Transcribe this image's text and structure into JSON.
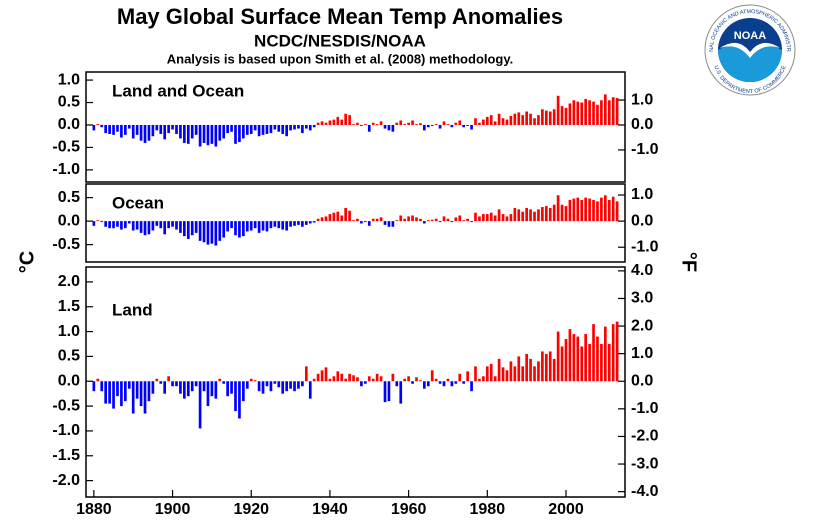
{
  "title": "May Global Surface Mean Temp Anomalies",
  "subtitle": "NCDC/NESDIS/NOAA",
  "note": "Analysis is based upon Smith et al. (2008) methodology.",
  "y_label": "°C",
  "y2_label": "°F",
  "logo": {
    "text": "NOAA",
    "ring_top": "NATIONAL OCEANIC AND ATMOSPHERIC ADMINISTRATION",
    "ring_bottom": "U.S. DEPARTMENT OF COMMERCE"
  },
  "chart_data": [
    {
      "type": "bar",
      "label": "Land and Ocean",
      "colors": {
        "positive": "#ff0000",
        "negative": "#0000ff"
      },
      "x": [
        1880,
        1881,
        1882,
        1883,
        1884,
        1885,
        1886,
        1887,
        1888,
        1889,
        1890,
        1891,
        1892,
        1893,
        1894,
        1895,
        1896,
        1897,
        1898,
        1899,
        1900,
        1901,
        1902,
        1903,
        1904,
        1905,
        1906,
        1907,
        1908,
        1909,
        1910,
        1911,
        1912,
        1913,
        1914,
        1915,
        1916,
        1917,
        1918,
        1919,
        1920,
        1921,
        1922,
        1923,
        1924,
        1925,
        1926,
        1927,
        1928,
        1929,
        1930,
        1931,
        1932,
        1933,
        1934,
        1935,
        1936,
        1937,
        1938,
        1939,
        1940,
        1941,
        1942,
        1943,
        1944,
        1945,
        1946,
        1947,
        1948,
        1949,
        1950,
        1951,
        1952,
        1953,
        1954,
        1955,
        1956,
        1957,
        1958,
        1959,
        1960,
        1961,
        1962,
        1963,
        1964,
        1965,
        1966,
        1967,
        1968,
        1969,
        1970,
        1971,
        1972,
        1973,
        1974,
        1975,
        1976,
        1977,
        1978,
        1979,
        1980,
        1981,
        1982,
        1983,
        1984,
        1985,
        1986,
        1987,
        1988,
        1989,
        1990,
        1991,
        1992,
        1993,
        1994,
        1995,
        1996,
        1997,
        1998,
        1999,
        2000,
        2001,
        2002,
        2003,
        2004,
        2005,
        2006,
        2007,
        2008,
        2009,
        2010,
        2011,
        2012,
        2013
      ],
      "values": [
        -0.12,
        0.02,
        -0.05,
        -0.18,
        -0.2,
        -0.22,
        -0.15,
        -0.28,
        -0.22,
        -0.08,
        -0.3,
        -0.22,
        -0.35,
        -0.4,
        -0.35,
        -0.25,
        -0.12,
        -0.2,
        -0.32,
        -0.18,
        -0.1,
        -0.2,
        -0.3,
        -0.4,
        -0.42,
        -0.3,
        -0.22,
        -0.48,
        -0.4,
        -0.45,
        -0.42,
        -0.48,
        -0.35,
        -0.3,
        -0.18,
        -0.15,
        -0.42,
        -0.38,
        -0.3,
        -0.22,
        -0.2,
        -0.12,
        -0.25,
        -0.22,
        -0.2,
        -0.18,
        -0.1,
        -0.15,
        -0.2,
        -0.25,
        -0.12,
        -0.1,
        -0.08,
        -0.18,
        -0.08,
        -0.12,
        -0.05,
        0.05,
        0.08,
        0.05,
        0.1,
        0.12,
        0.18,
        0.12,
        0.25,
        0.22,
        0.02,
        0.05,
        -0.02,
        0.02,
        -0.15,
        0.05,
        0.02,
        0.08,
        -0.08,
        -0.12,
        -0.15,
        0.05,
        0.1,
        0.02,
        0.05,
        0.1,
        0.02,
        0.04,
        -0.12,
        -0.05,
        -0.02,
        0.02,
        -0.08,
        0.08,
        0.02,
        -0.05,
        0.05,
        0.1,
        -0.05,
        -0.02,
        -0.1,
        0.15,
        0.05,
        0.12,
        0.18,
        0.22,
        0.08,
        0.25,
        0.15,
        0.12,
        0.2,
        0.25,
        0.28,
        0.22,
        0.3,
        0.25,
        0.15,
        0.22,
        0.35,
        0.32,
        0.3,
        0.35,
        0.65,
        0.42,
        0.38,
        0.48,
        0.55,
        0.52,
        0.5,
        0.58,
        0.55,
        0.52,
        0.45,
        0.55,
        0.68,
        0.55,
        0.62,
        0.6
      ],
      "xlim": [
        1878,
        2015
      ],
      "ylim": [
        -1.27,
        1.18
      ],
      "y2lim": [
        -2.286,
        2.124
      ],
      "yticks": [
        {
          "value": 1,
          "label": "1.0"
        },
        {
          "value": 0.5,
          "label": "0.5"
        },
        {
          "value": 0,
          "label": "0.0"
        },
        {
          "value": -0.5,
          "label": "-0.5"
        },
        {
          "value": -1,
          "label": "-1.0"
        }
      ],
      "y2ticks": [
        {
          "value": 1,
          "label": "1.0"
        },
        {
          "value": 0,
          "label": "0.0"
        },
        {
          "value": -1,
          "label": "-1.0"
        }
      ]
    },
    {
      "type": "bar",
      "label": "Ocean",
      "colors": {
        "positive": "#ff0000",
        "negative": "#0000ff"
      },
      "x": [
        1880,
        1881,
        1882,
        1883,
        1884,
        1885,
        1886,
        1887,
        1888,
        1889,
        1890,
        1891,
        1892,
        1893,
        1894,
        1895,
        1896,
        1897,
        1898,
        1899,
        1900,
        1901,
        1902,
        1903,
        1904,
        1905,
        1906,
        1907,
        1908,
        1909,
        1910,
        1911,
        1912,
        1913,
        1914,
        1915,
        1916,
        1917,
        1918,
        1919,
        1920,
        1921,
        1922,
        1923,
        1924,
        1925,
        1926,
        1927,
        1928,
        1929,
        1930,
        1931,
        1932,
        1933,
        1934,
        1935,
        1936,
        1937,
        1938,
        1939,
        1940,
        1941,
        1942,
        1943,
        1944,
        1945,
        1946,
        1947,
        1948,
        1949,
        1950,
        1951,
        1952,
        1953,
        1954,
        1955,
        1956,
        1957,
        1958,
        1959,
        1960,
        1961,
        1962,
        1963,
        1964,
        1965,
        1966,
        1967,
        1968,
        1969,
        1970,
        1971,
        1972,
        1973,
        1974,
        1975,
        1976,
        1977,
        1978,
        1979,
        1980,
        1981,
        1982,
        1983,
        1984,
        1985,
        1986,
        1987,
        1988,
        1989,
        1990,
        1991,
        1992,
        1993,
        1994,
        1995,
        1996,
        1997,
        1998,
        1999,
        2000,
        2001,
        2002,
        2003,
        2004,
        2005,
        2006,
        2007,
        2008,
        2009,
        2010,
        2011,
        2012,
        2013
      ],
      "values": [
        -0.1,
        0.02,
        -0.02,
        -0.12,
        -0.15,
        -0.15,
        -0.12,
        -0.18,
        -0.15,
        -0.05,
        -0.2,
        -0.18,
        -0.25,
        -0.3,
        -0.28,
        -0.2,
        -0.1,
        -0.15,
        -0.28,
        -0.15,
        -0.12,
        -0.18,
        -0.25,
        -0.32,
        -0.38,
        -0.3,
        -0.25,
        -0.42,
        -0.45,
        -0.5,
        -0.48,
        -0.52,
        -0.42,
        -0.35,
        -0.22,
        -0.15,
        -0.3,
        -0.35,
        -0.32,
        -0.22,
        -0.2,
        -0.15,
        -0.25,
        -0.2,
        -0.22,
        -0.15,
        -0.12,
        -0.15,
        -0.18,
        -0.2,
        -0.12,
        -0.1,
        -0.08,
        -0.12,
        -0.08,
        -0.05,
        -0.03,
        0.05,
        0.08,
        0.1,
        0.15,
        0.18,
        0.2,
        0.12,
        0.28,
        0.22,
        0.02,
        0.05,
        -0.05,
        -0.02,
        -0.1,
        0.05,
        0.05,
        0.08,
        -0.08,
        -0.12,
        -0.12,
        0.02,
        0.12,
        0.05,
        0.1,
        0.12,
        0.08,
        0.05,
        -0.05,
        0.02,
        0.03,
        0.05,
        -0.02,
        0.1,
        0.05,
        -0.02,
        0.08,
        0.12,
        0.02,
        0.05,
        -0.02,
        0.18,
        0.1,
        0.15,
        0.15,
        0.18,
        0.12,
        0.25,
        0.15,
        0.1,
        0.15,
        0.28,
        0.25,
        0.2,
        0.28,
        0.25,
        0.2,
        0.25,
        0.3,
        0.32,
        0.28,
        0.35,
        0.55,
        0.35,
        0.32,
        0.45,
        0.48,
        0.5,
        0.45,
        0.5,
        0.48,
        0.45,
        0.42,
        0.5,
        0.55,
        0.45,
        0.52,
        0.42
      ],
      "xlim": [
        1878,
        2015
      ],
      "ylim": [
        -0.87,
        0.79
      ],
      "y2lim": [
        -1.566,
        1.422
      ],
      "yticks": [
        {
          "value": 0.5,
          "label": "0.5"
        },
        {
          "value": 0,
          "label": "0.0"
        },
        {
          "value": -0.5,
          "label": "-0.5"
        }
      ],
      "y2ticks": [
        {
          "value": 1,
          "label": "1.0"
        },
        {
          "value": 0,
          "label": "0.0"
        },
        {
          "value": -1,
          "label": "-1.0"
        }
      ]
    },
    {
      "type": "bar",
      "label": "Land",
      "colors": {
        "positive": "#ff0000",
        "negative": "#0000ff"
      },
      "x": [
        1880,
        1881,
        1882,
        1883,
        1884,
        1885,
        1886,
        1887,
        1888,
        1889,
        1890,
        1891,
        1892,
        1893,
        1894,
        1895,
        1896,
        1897,
        1898,
        1899,
        1900,
        1901,
        1902,
        1903,
        1904,
        1905,
        1906,
        1907,
        1908,
        1909,
        1910,
        1911,
        1912,
        1913,
        1914,
        1915,
        1916,
        1917,
        1918,
        1919,
        1920,
        1921,
        1922,
        1923,
        1924,
        1925,
        1926,
        1927,
        1928,
        1929,
        1930,
        1931,
        1932,
        1933,
        1934,
        1935,
        1936,
        1937,
        1938,
        1939,
        1940,
        1941,
        1942,
        1943,
        1944,
        1945,
        1946,
        1947,
        1948,
        1949,
        1950,
        1951,
        1952,
        1953,
        1954,
        1955,
        1956,
        1957,
        1958,
        1959,
        1960,
        1961,
        1962,
        1963,
        1964,
        1965,
        1966,
        1967,
        1968,
        1969,
        1970,
        1971,
        1972,
        1973,
        1974,
        1975,
        1976,
        1977,
        1978,
        1979,
        1980,
        1981,
        1982,
        1983,
        1984,
        1985,
        1986,
        1987,
        1988,
        1989,
        1990,
        1991,
        1992,
        1993,
        1994,
        1995,
        1996,
        1997,
        1998,
        1999,
        2000,
        2001,
        2002,
        2003,
        2004,
        2005,
        2006,
        2007,
        2008,
        2009,
        2010,
        2011,
        2012,
        2013
      ],
      "values": [
        -0.2,
        0.05,
        -0.2,
        -0.45,
        -0.45,
        -0.55,
        -0.3,
        -0.5,
        -0.4,
        -0.15,
        -0.65,
        -0.35,
        -0.5,
        -0.65,
        -0.4,
        -0.25,
        0.05,
        -0.05,
        -0.25,
        0.1,
        -0.1,
        -0.1,
        -0.25,
        -0.35,
        -0.3,
        -0.2,
        -0.1,
        -0.95,
        -0.2,
        -0.5,
        -0.3,
        -0.35,
        0.05,
        -0.05,
        -0.3,
        -0.25,
        -0.6,
        -0.75,
        -0.4,
        -0.15,
        0.05,
        0.02,
        -0.2,
        -0.25,
        -0.1,
        -0.2,
        -0.05,
        -0.12,
        -0.25,
        -0.2,
        -0.15,
        -0.2,
        -0.15,
        -0.1,
        0.3,
        -0.35,
        0.05,
        0.15,
        0.22,
        0.28,
        0.05,
        0.1,
        0.2,
        0.15,
        0.05,
        0.15,
        0.12,
        0.08,
        -0.1,
        -0.05,
        0.1,
        0.05,
        0.15,
        0.1,
        -0.42,
        -0.4,
        0.15,
        -0.1,
        -0.45,
        0.05,
        0.1,
        -0.05,
        0.08,
        0.02,
        -0.15,
        -0.1,
        0.22,
        0.05,
        -0.05,
        -0.1,
        0.05,
        -0.1,
        -0.05,
        0.15,
        -0.05,
        0.2,
        -0.2,
        0.3,
        0.05,
        0.1,
        0.3,
        0.35,
        0.1,
        0.45,
        0.28,
        0.22,
        0.4,
        0.3,
        0.5,
        0.3,
        0.55,
        0.45,
        0.3,
        0.4,
        0.6,
        0.55,
        0.6,
        0.45,
        1.0,
        0.7,
        0.85,
        1.05,
        0.95,
        0.9,
        0.7,
        0.95,
        0.75,
        1.15,
        0.9,
        0.75,
        1.1,
        0.75,
        1.15,
        1.2
      ],
      "xlim": [
        1878,
        2015
      ],
      "ylim": [
        -2.33,
        2.3
      ],
      "y2lim": [
        -4.194,
        4.14
      ],
      "xticks": [
        1880,
        1900,
        1920,
        1940,
        1960,
        1980,
        2000
      ],
      "yticks": [
        {
          "value": 2,
          "label": "2.0"
        },
        {
          "value": 1.5,
          "label": "1.5"
        },
        {
          "value": 1,
          "label": "1.0"
        },
        {
          "value": 0.5,
          "label": "0.5"
        },
        {
          "value": 0,
          "label": "0.0"
        },
        {
          "value": -0.5,
          "label": "-0.5"
        },
        {
          "value": -1,
          "label": "-1.0"
        },
        {
          "value": -1.5,
          "label": "-1.5"
        },
        {
          "value": -2,
          "label": "-2.0"
        }
      ],
      "y2ticks": [
        {
          "value": 4,
          "label": "4.0"
        },
        {
          "value": 3,
          "label": "3.0"
        },
        {
          "value": 2,
          "label": "2.0"
        },
        {
          "value": 1,
          "label": "1.0"
        },
        {
          "value": 0,
          "label": "0.0"
        },
        {
          "value": -1,
          "label": "-1.0"
        },
        {
          "value": -2,
          "label": "-2.0"
        },
        {
          "value": -3,
          "label": "-3.0"
        },
        {
          "value": -4,
          "label": "-4.0"
        }
      ]
    }
  ]
}
